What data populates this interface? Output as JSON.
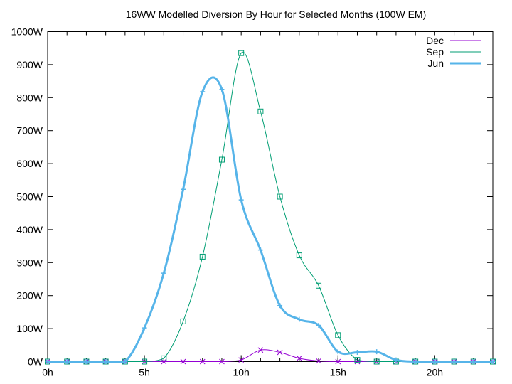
{
  "chart_data": {
    "type": "line",
    "title": "16WW Modelled Diversion By Hour for Selected Months (100W EM)",
    "xlabel": "",
    "ylabel": "",
    "xlim": [
      0,
      23
    ],
    "ylim": [
      0,
      1000
    ],
    "grid": false,
    "legend_position": "top-right",
    "x_ticks": [
      {
        "value": 0,
        "label": "0h"
      },
      {
        "value": 5,
        "label": "5h"
      },
      {
        "value": 10,
        "label": "10h"
      },
      {
        "value": 15,
        "label": "15h"
      },
      {
        "value": 20,
        "label": "20h"
      }
    ],
    "y_ticks": [
      {
        "value": 0,
        "label": "0W"
      },
      {
        "value": 100,
        "label": "100W"
      },
      {
        "value": 200,
        "label": "200W"
      },
      {
        "value": 300,
        "label": "300W"
      },
      {
        "value": 400,
        "label": "400W"
      },
      {
        "value": 500,
        "label": "500W"
      },
      {
        "value": 600,
        "label": "600W"
      },
      {
        "value": 700,
        "label": "700W"
      },
      {
        "value": 800,
        "label": "800W"
      },
      {
        "value": 900,
        "label": "900W"
      },
      {
        "value": 1000,
        "label": "1000W"
      }
    ],
    "x": [
      0,
      1,
      2,
      3,
      4,
      5,
      6,
      7,
      8,
      9,
      10,
      11,
      12,
      13,
      14,
      15,
      16,
      17,
      18,
      19,
      20,
      21,
      22,
      23
    ],
    "series": [
      {
        "name": "Dec",
        "color": "#9400d3",
        "marker": "x",
        "values": [
          0,
          0,
          0,
          0,
          0,
          0,
          0,
          0,
          0,
          0,
          5,
          35,
          28,
          10,
          2,
          0,
          0,
          0,
          0,
          0,
          0,
          0,
          0,
          0
        ]
      },
      {
        "name": "Sep",
        "color": "#009e73",
        "marker": "square",
        "values": [
          0,
          0,
          0,
          0,
          0,
          0,
          10,
          122,
          318,
          612,
          935,
          758,
          500,
          322,
          230,
          80,
          5,
          0,
          0,
          0,
          0,
          0,
          0,
          0
        ]
      },
      {
        "name": "Jun",
        "color": "#56b4e9",
        "marker": "plus",
        "values": [
          0,
          0,
          0,
          0,
          0,
          102,
          268,
          522,
          818,
          825,
          490,
          338,
          170,
          128,
          110,
          30,
          28,
          30,
          5,
          0,
          0,
          0,
          0,
          0
        ]
      }
    ]
  }
}
